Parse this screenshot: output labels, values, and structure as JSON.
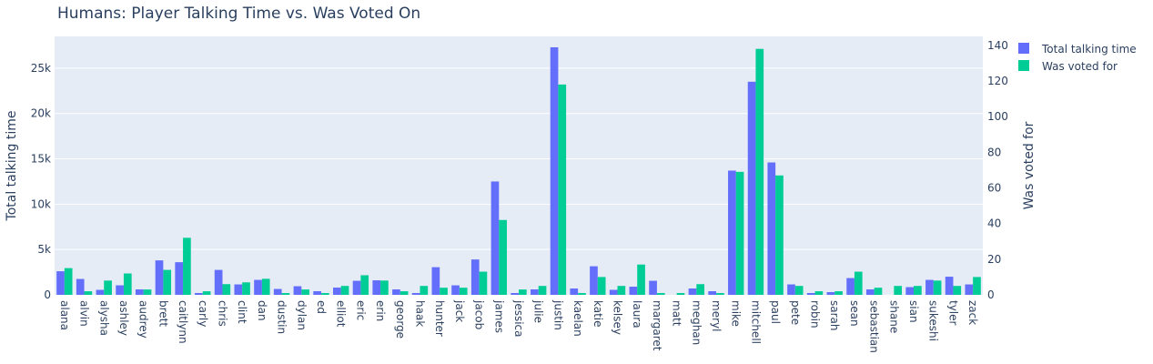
{
  "chart_data": {
    "type": "bar",
    "title": "Humans: Player Talking Time vs. Was Voted On",
    "ylabel": "Total talking time",
    "y2label": "Was voted for",
    "ylim": [
      0,
      28500
    ],
    "y2lim": [
      0,
      145
    ],
    "yticks": [
      "0",
      "5k",
      "10k",
      "15k",
      "20k",
      "25k"
    ],
    "y2ticks": [
      "0",
      "20",
      "40",
      "60",
      "80",
      "100",
      "120",
      "140"
    ],
    "legend_position": "top-right",
    "categories": [
      "alana",
      "alvin",
      "alysha",
      "ashley",
      "audrey",
      "brett",
      "caitlynn",
      "carly",
      "chris",
      "clint",
      "dan",
      "dustin",
      "dylan",
      "ed",
      "elliot",
      "eric",
      "erin",
      "george",
      "haak",
      "hunter",
      "jack",
      "jacob",
      "james",
      "jessica",
      "julie",
      "justin",
      "kaelan",
      "katie",
      "kelsey",
      "laura",
      "margaret",
      "matt",
      "meghan",
      "meryl",
      "mike",
      "mitchell",
      "paul",
      "pete",
      "robin",
      "sarah",
      "sean",
      "sebastian",
      "shane",
      "sian",
      "sukeshi",
      "tyler",
      "zack"
    ],
    "series": [
      {
        "name": "Total talking time",
        "axis": "left",
        "color": "#636efa",
        "values": [
          2600,
          1750,
          550,
          1050,
          600,
          3800,
          3600,
          200,
          2750,
          1150,
          1650,
          650,
          950,
          400,
          800,
          1550,
          1600,
          600,
          200,
          3050,
          1050,
          3900,
          12500,
          200,
          600,
          27300,
          700,
          3150,
          550,
          900,
          1550,
          0,
          700,
          400,
          13700,
          23500,
          14600,
          1150,
          200,
          300,
          1850,
          600,
          0,
          850,
          1650,
          2000,
          1150
        ]
      },
      {
        "name": "Was voted for",
        "axis": "right",
        "color": "#00cc96",
        "values": [
          15,
          2,
          8,
          12,
          3,
          14,
          32,
          2,
          6,
          7,
          9,
          1,
          3,
          1,
          5,
          11,
          8,
          2,
          5,
          4,
          4,
          13,
          42,
          3,
          5,
          118,
          1,
          10,
          5,
          17,
          1,
          1,
          6,
          1,
          69,
          138,
          67,
          5,
          2,
          2,
          13,
          4,
          5,
          5,
          8,
          5,
          10
        ]
      }
    ]
  }
}
